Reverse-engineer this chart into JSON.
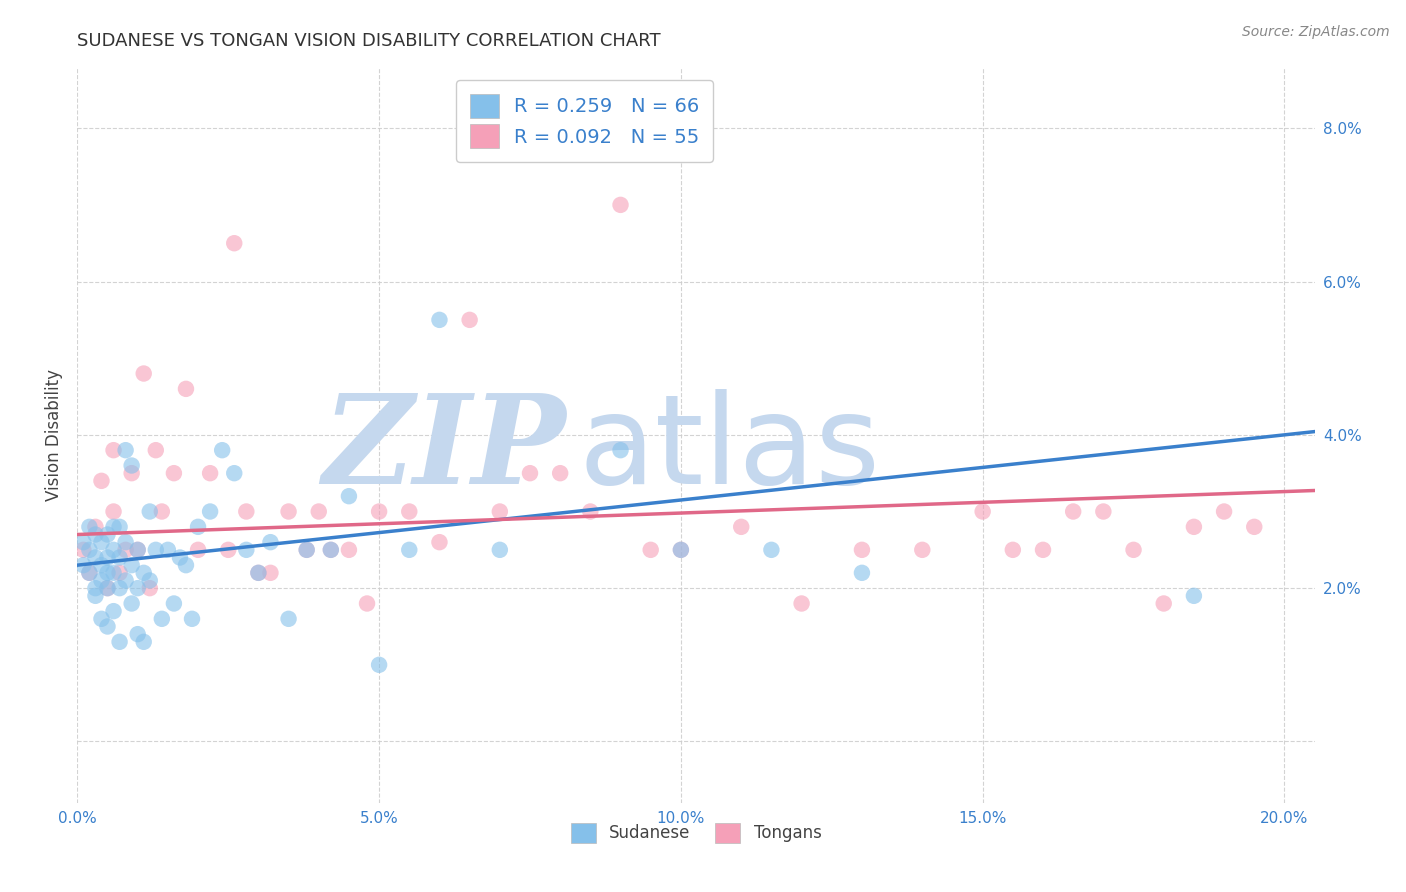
{
  "title": "SUDANESE VS TONGAN VISION DISABILITY CORRELATION CHART",
  "source": "Source: ZipAtlas.com",
  "ylabel": "Vision Disability",
  "xlim": [
    0.0,
    0.205
  ],
  "ylim": [
    -0.008,
    0.088
  ],
  "xticks": [
    0.0,
    0.05,
    0.1,
    0.15,
    0.2
  ],
  "yticks": [
    0.0,
    0.02,
    0.04,
    0.06,
    0.08
  ],
  "xticklabels": [
    "0.0%",
    "5.0%",
    "10.0%",
    "15.0%",
    "20.0%"
  ],
  "yticklabels": [
    "",
    "2.0%",
    "4.0%",
    "6.0%",
    "8.0%"
  ],
  "sudanese_R": 0.259,
  "sudanese_N": 66,
  "tongan_R": 0.092,
  "tongan_N": 55,
  "sudanese_color": "#85C0EA",
  "tongan_color": "#F5A0B8",
  "sudanese_line_color": "#3A80CC",
  "tongan_line_color": "#E06888",
  "background_color": "#FFFFFF",
  "grid_color": "#CCCCCC",
  "watermark_color": "#C5D8EE",
  "legend_text_color": "#3A80CC",
  "sudanese_x": [
    0.001,
    0.001,
    0.002,
    0.002,
    0.002,
    0.003,
    0.003,
    0.003,
    0.003,
    0.004,
    0.004,
    0.004,
    0.004,
    0.005,
    0.005,
    0.005,
    0.005,
    0.005,
    0.006,
    0.006,
    0.006,
    0.006,
    0.007,
    0.007,
    0.007,
    0.007,
    0.008,
    0.008,
    0.008,
    0.009,
    0.009,
    0.009,
    0.01,
    0.01,
    0.01,
    0.011,
    0.011,
    0.012,
    0.012,
    0.013,
    0.014,
    0.015,
    0.016,
    0.017,
    0.018,
    0.019,
    0.02,
    0.022,
    0.024,
    0.026,
    0.028,
    0.03,
    0.032,
    0.035,
    0.038,
    0.042,
    0.045,
    0.05,
    0.055,
    0.06,
    0.07,
    0.09,
    0.1,
    0.115,
    0.13,
    0.185
  ],
  "sudanese_y": [
    0.026,
    0.023,
    0.028,
    0.022,
    0.025,
    0.02,
    0.024,
    0.027,
    0.019,
    0.023,
    0.026,
    0.016,
    0.021,
    0.015,
    0.02,
    0.024,
    0.027,
    0.022,
    0.017,
    0.022,
    0.025,
    0.028,
    0.013,
    0.02,
    0.024,
    0.028,
    0.021,
    0.026,
    0.038,
    0.018,
    0.023,
    0.036,
    0.014,
    0.02,
    0.025,
    0.013,
    0.022,
    0.021,
    0.03,
    0.025,
    0.016,
    0.025,
    0.018,
    0.024,
    0.023,
    0.016,
    0.028,
    0.03,
    0.038,
    0.035,
    0.025,
    0.022,
    0.026,
    0.016,
    0.025,
    0.025,
    0.032,
    0.01,
    0.025,
    0.055,
    0.025,
    0.038,
    0.025,
    0.025,
    0.022,
    0.019
  ],
  "tongan_x": [
    0.001,
    0.002,
    0.003,
    0.004,
    0.005,
    0.006,
    0.006,
    0.007,
    0.008,
    0.009,
    0.01,
    0.011,
    0.012,
    0.013,
    0.014,
    0.016,
    0.018,
    0.02,
    0.022,
    0.025,
    0.026,
    0.028,
    0.03,
    0.032,
    0.035,
    0.038,
    0.04,
    0.042,
    0.045,
    0.048,
    0.05,
    0.055,
    0.06,
    0.065,
    0.07,
    0.075,
    0.08,
    0.085,
    0.09,
    0.095,
    0.1,
    0.11,
    0.12,
    0.13,
    0.14,
    0.15,
    0.155,
    0.16,
    0.165,
    0.17,
    0.175,
    0.18,
    0.185,
    0.19,
    0.195
  ],
  "tongan_y": [
    0.025,
    0.022,
    0.028,
    0.034,
    0.02,
    0.03,
    0.038,
    0.022,
    0.025,
    0.035,
    0.025,
    0.048,
    0.02,
    0.038,
    0.03,
    0.035,
    0.046,
    0.025,
    0.035,
    0.025,
    0.065,
    0.03,
    0.022,
    0.022,
    0.03,
    0.025,
    0.03,
    0.025,
    0.025,
    0.018,
    0.03,
    0.03,
    0.026,
    0.055,
    0.03,
    0.035,
    0.035,
    0.03,
    0.07,
    0.025,
    0.025,
    0.028,
    0.018,
    0.025,
    0.025,
    0.03,
    0.025,
    0.025,
    0.03,
    0.03,
    0.025,
    0.018,
    0.028,
    0.03,
    0.028
  ],
  "sudanese_slope": 0.085,
  "sudanese_intercept": 0.023,
  "tongan_slope": 0.028,
  "tongan_intercept": 0.027
}
